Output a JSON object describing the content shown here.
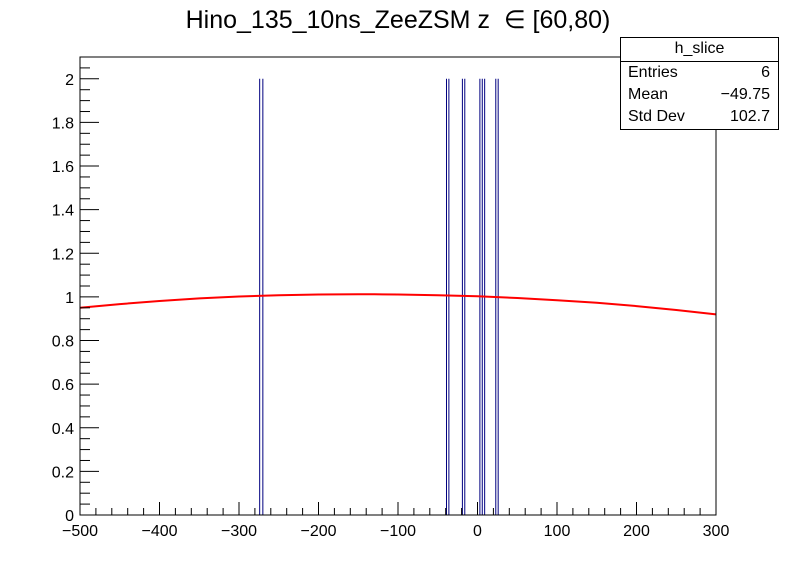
{
  "chart_data": {
    "type": "bar",
    "title": "Hino_135_10ns_ZeeZSM z  ∈ [60,80)",
    "xlabel": "",
    "ylabel": "",
    "xlim": [
      -500,
      300
    ],
    "ylim": [
      0,
      2.1
    ],
    "x_ticks": [
      -500,
      -400,
      -300,
      -200,
      -100,
      0,
      100,
      200,
      300
    ],
    "x_tick_labels": [
      "−500",
      "−400",
      "−300",
      "−200",
      "−100",
      "0",
      "100",
      "200",
      "300"
    ],
    "y_ticks": [
      0,
      0.2,
      0.4,
      0.6,
      0.8,
      1,
      1.2,
      1.4,
      1.6,
      1.8,
      2
    ],
    "y_tick_labels": [
      "0",
      "0.2",
      "0.4",
      "0.6",
      "0.8",
      "1",
      "1.2",
      "1.4",
      "1.6",
      "1.8",
      "2"
    ],
    "histogram_color": "#000080",
    "fit_color": "#ff0000",
    "spikes": [
      {
        "x": -274,
        "y": 2
      },
      {
        "x": -270,
        "y": 2
      },
      {
        "x": -39,
        "y": 2
      },
      {
        "x": -36,
        "y": 2
      },
      {
        "x": -19,
        "y": 2
      },
      {
        "x": -16,
        "y": 2
      },
      {
        "x": 3,
        "y": 2
      },
      {
        "x": 6,
        "y": 2
      },
      {
        "x": 9,
        "y": 2
      },
      {
        "x": 23,
        "y": 2
      },
      {
        "x": 26,
        "y": 2
      }
    ],
    "series": [
      {
        "type": "line",
        "x": [
          -500,
          -450,
          -400,
          -350,
          -300,
          -250,
          -200,
          -150,
          -130,
          -100,
          -50,
          0,
          50,
          100,
          150,
          200,
          250,
          300
        ],
        "y": [
          0.95,
          0.967,
          0.981,
          0.993,
          1.002,
          1.008,
          1.011,
          1.012,
          1.012,
          1.011,
          1.008,
          1.003,
          0.995,
          0.985,
          0.973,
          0.958,
          0.94,
          0.92
        ]
      }
    ]
  },
  "stats_box": {
    "name": "h_slice",
    "rows": [
      {
        "label": "Entries",
        "value": "6"
      },
      {
        "label": "Mean",
        "value": "−49.75"
      },
      {
        "label": "Std Dev",
        "value": "102.7"
      }
    ]
  }
}
